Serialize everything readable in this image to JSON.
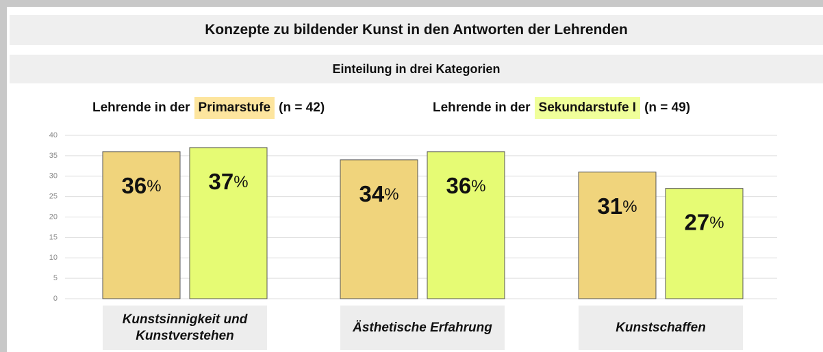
{
  "chart_data": {
    "type": "bar",
    "title": "Konzepte zu bildender Kunst in den Antworten der Lehrenden",
    "subtitle": "Einteilung in drei Kategorien",
    "legend_prefix": "Lehrende in der",
    "categories": [
      "Kunstsinnigkeit und Kunstverstehen",
      "Ästhetische Erfahrung",
      "Kunstschaffen"
    ],
    "series": [
      {
        "name": "Primarstufe",
        "n_label": "(n = 42)",
        "color": "#f0d47c",
        "highlight": "#fde59e",
        "values": [
          36,
          34,
          31
        ],
        "value_labels": [
          "36%",
          "34%",
          "31%"
        ]
      },
      {
        "name": "Sekundarstufe I",
        "n_label": "(n = 49)",
        "color": "#e6fb74",
        "highlight": "#f0ff9a",
        "values": [
          37,
          36,
          27
        ],
        "value_labels": [
          "37%",
          "36%",
          "27%"
        ]
      }
    ],
    "ylim": [
      0,
      40
    ],
    "yticks": [
      0,
      5,
      10,
      15,
      20,
      25,
      30,
      35,
      40
    ],
    "grid": true
  }
}
